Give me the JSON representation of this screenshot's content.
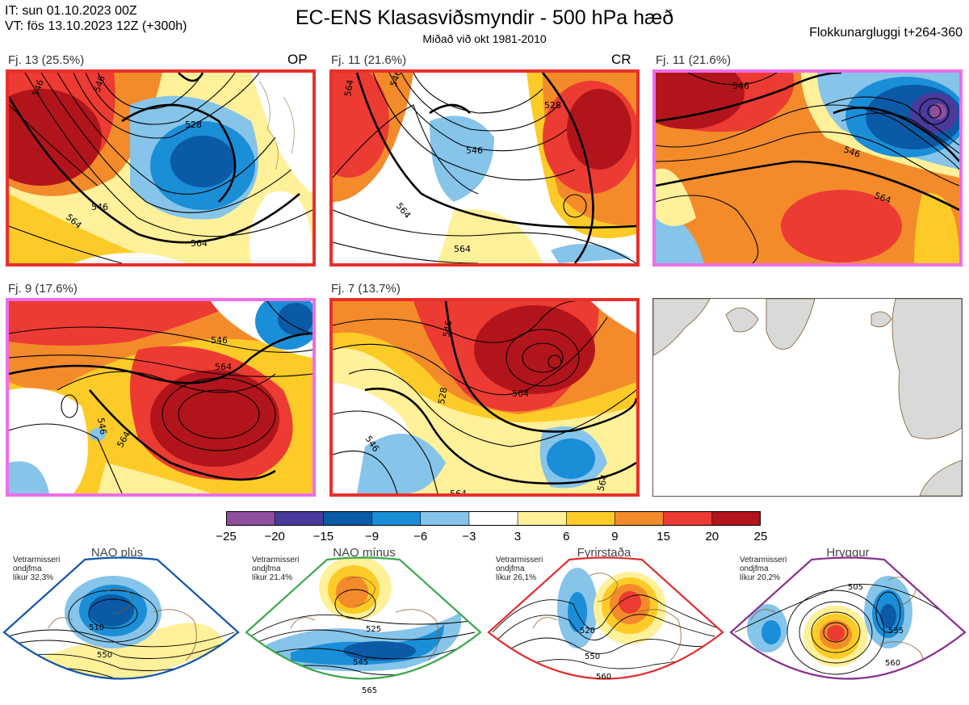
{
  "header": {
    "it_line": "IT: sun 01.10.2023 00Z",
    "vt_line": "VT: fös 13.10.2023 12Z  (+300h)",
    "title": "EC-ENS Klasasviðsmyndir - 500 hPa hæð",
    "subtitle": "Miðað við okt 1981-2010",
    "window": "Flokkunargluggi t+264-360"
  },
  "clusters": [
    {
      "label": "Fj. 13 (25.5%)",
      "tag": "OP",
      "border": "#e8302b",
      "contours": [
        "546",
        "546",
        "528",
        "546",
        "564",
        "564"
      ]
    },
    {
      "label": "Fj. 11 (21.6%)",
      "tag": "CR",
      "border": "#e8302b",
      "contours": [
        "564",
        "546",
        "528",
        "546",
        "564",
        "564"
      ]
    },
    {
      "label": "Fj. 11 (21.6%)",
      "tag": "",
      "border": "#ee6ee8",
      "contours": [
        "546",
        "546",
        "564"
      ]
    },
    {
      "label": "Fj. 9 (17.6%)",
      "tag": "",
      "border": "#ee6ee8",
      "contours": [
        "546",
        "564",
        "546",
        "564"
      ]
    },
    {
      "label": "Fj. 7 (13.7%)",
      "tag": "",
      "border": "#e8302b",
      "contours": [
        "546",
        "528",
        "564",
        "546",
        "564",
        "564"
      ]
    }
  ],
  "colorbar": {
    "ticks": [
      "−25",
      "−20",
      "−15",
      "−9",
      "−6",
      "−3",
      "3",
      "6",
      "9",
      "15",
      "20",
      "25"
    ],
    "colors": [
      "#8e4f9e",
      "#4a3a9c",
      "#0a5aa6",
      "#1a8ed6",
      "#86c4ea",
      "#ffffff",
      "#fff09a",
      "#fccb27",
      "#f38b2b",
      "#ec3b32",
      "#b1151b"
    ]
  },
  "regimes": [
    {
      "name": "NAO plús",
      "note": [
        "Vetrarmisseri",
        "ondjfma",
        "líkur 32,3%"
      ],
      "border": "#1057a8",
      "dot": "#1057a8",
      "contours": [
        "510",
        "550"
      ]
    },
    {
      "name": "NAO mínus",
      "note": [
        "Vetrarmisseri",
        "ondjfma",
        "líkur 21,4%"
      ],
      "border": "#3aa84a",
      "dot": "#3ab54a",
      "contours": [
        "525",
        "545",
        "565"
      ]
    },
    {
      "name": "Fyrirstaða",
      "note": [
        "Vetrarmisseri",
        "ondjfma",
        "líkur 26,1%"
      ],
      "border": "#e22d2d",
      "dot": "#ee2b2b",
      "contours": [
        "520",
        "550",
        "560"
      ]
    },
    {
      "name": "Hryggur",
      "note": [
        "Vetrarmisseri",
        "ondjfma",
        "líkur 20,2%"
      ],
      "border": "#8a2f8e",
      "dot": "#ee6ee8",
      "contours": [
        "505",
        "535",
        "560"
      ]
    }
  ]
}
